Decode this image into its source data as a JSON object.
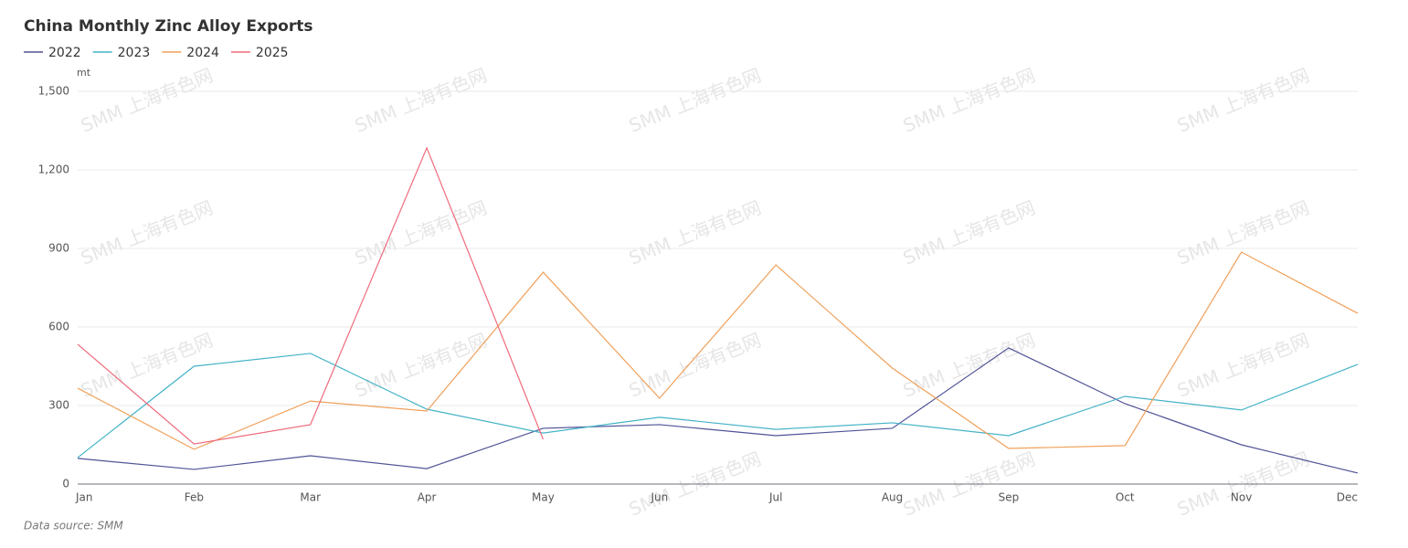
{
  "chart_data": {
    "type": "line",
    "title": "China Monthly Zinc Alloy Exports",
    "y_unit": "mt",
    "source": "Data source:  SMM",
    "watermark": "SMM 上海有色网",
    "categories": [
      "Jan",
      "Feb",
      "Mar",
      "Apr",
      "May",
      "Jun",
      "Jul",
      "Aug",
      "Sep",
      "Oct",
      "Nov",
      "Dec"
    ],
    "series": [
      {
        "name": "2022",
        "color": "#505396",
        "values": [
          98,
          56,
          108,
          59,
          213,
          227,
          185,
          213,
          520,
          307,
          150,
          42
        ]
      },
      {
        "name": "2023",
        "color": "#45b3c8",
        "values": [
          101,
          450,
          499,
          286,
          195,
          255,
          209,
          234,
          185,
          335,
          283,
          457
        ]
      },
      {
        "name": "2024",
        "color": "#f0a05a",
        "values": [
          366,
          133,
          317,
          279,
          809,
          328,
          837,
          443,
          136,
          147,
          886,
          652
        ]
      },
      {
        "name": "2025",
        "color": "#ee6b7c",
        "values": [
          534,
          153,
          227,
          1284,
          171,
          null,
          null,
          null,
          null,
          null,
          null,
          null
        ]
      }
    ],
    "ylim": [
      0,
      1500
    ],
    "yticks": [
      0,
      300,
      600,
      900,
      {
        "value": 1200,
        "label": "1,200"
      },
      {
        "value": 1500,
        "label": "1,500"
      }
    ],
    "grid": true,
    "legend": "top-left"
  }
}
